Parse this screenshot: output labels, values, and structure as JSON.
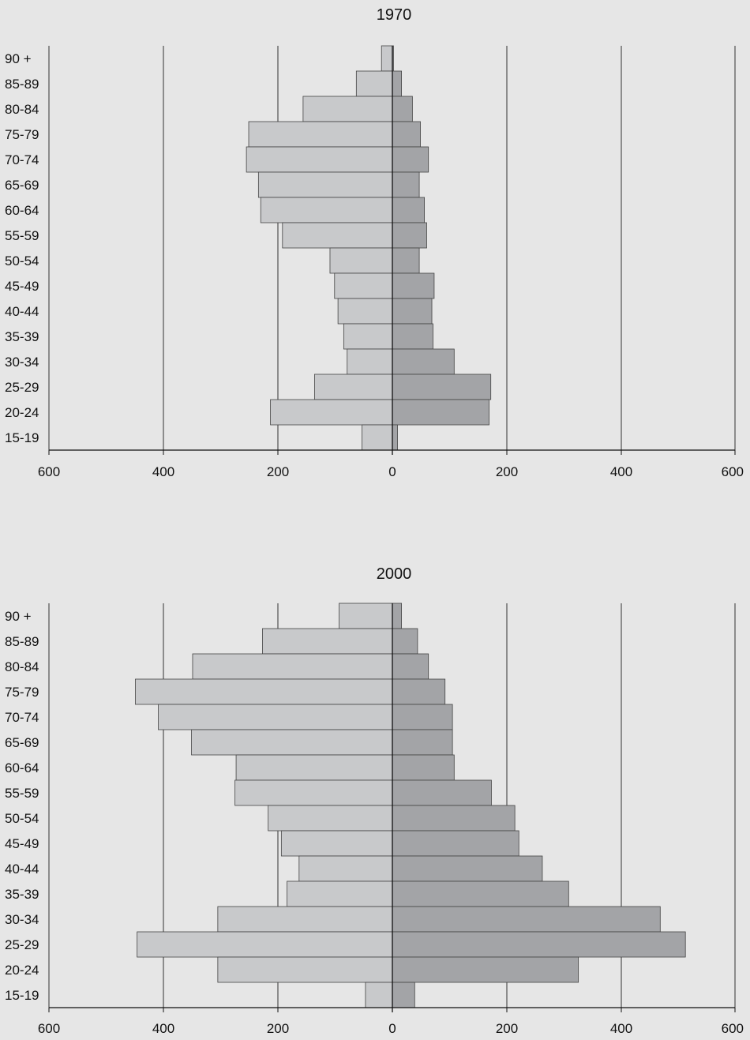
{
  "chart_data": [
    {
      "type": "bar",
      "orientation": "horizontal",
      "layout": "population-pyramid",
      "title": "1970",
      "categories": [
        "90 +",
        "85-89",
        "80-84",
        "75-79",
        "70-74",
        "65-69",
        "60-64",
        "55-59",
        "50-54",
        "45-49",
        "40-44",
        "35-39",
        "30-34",
        "25-29",
        "20-24",
        "15-19"
      ],
      "series": [
        {
          "side": "left",
          "color": "#c8c9cb",
          "values": [
            19,
            63,
            156,
            251,
            255,
            234,
            230,
            192,
            109,
            101,
            95,
            85,
            79,
            136,
            213,
            53
          ]
        },
        {
          "side": "right",
          "color": "#a3a4a7",
          "values": [
            2,
            16,
            35,
            49,
            63,
            47,
            56,
            60,
            47,
            73,
            69,
            71,
            108,
            172,
            169,
            9
          ]
        }
      ],
      "x_ticks": [
        "600",
        "400",
        "200",
        "0",
        "200",
        "400",
        "600"
      ],
      "xlim": [
        -600,
        600
      ],
      "grid": true
    },
    {
      "type": "bar",
      "orientation": "horizontal",
      "layout": "population-pyramid",
      "title": "2000",
      "categories": [
        "90 +",
        "85-89",
        "80-84",
        "75-79",
        "70-74",
        "65-69",
        "60-64",
        "55-59",
        "50-54",
        "45-49",
        "40-44",
        "35-39",
        "30-34",
        "25-29",
        "20-24",
        "15-19"
      ],
      "series": [
        {
          "side": "left",
          "color": "#c8c9cb",
          "values": [
            93,
            227,
            349,
            449,
            409,
            351,
            273,
            275,
            217,
            194,
            163,
            184,
            305,
            446,
            305,
            47
          ]
        },
        {
          "side": "right",
          "color": "#a3a4a7",
          "values": [
            16,
            44,
            63,
            92,
            105,
            105,
            108,
            173,
            214,
            221,
            262,
            308,
            468,
            512,
            325,
            39
          ]
        }
      ],
      "x_ticks": [
        "600",
        "400",
        "200",
        "0",
        "200",
        "400",
        "600"
      ],
      "xlim": [
        -600,
        600
      ],
      "grid": true
    }
  ]
}
